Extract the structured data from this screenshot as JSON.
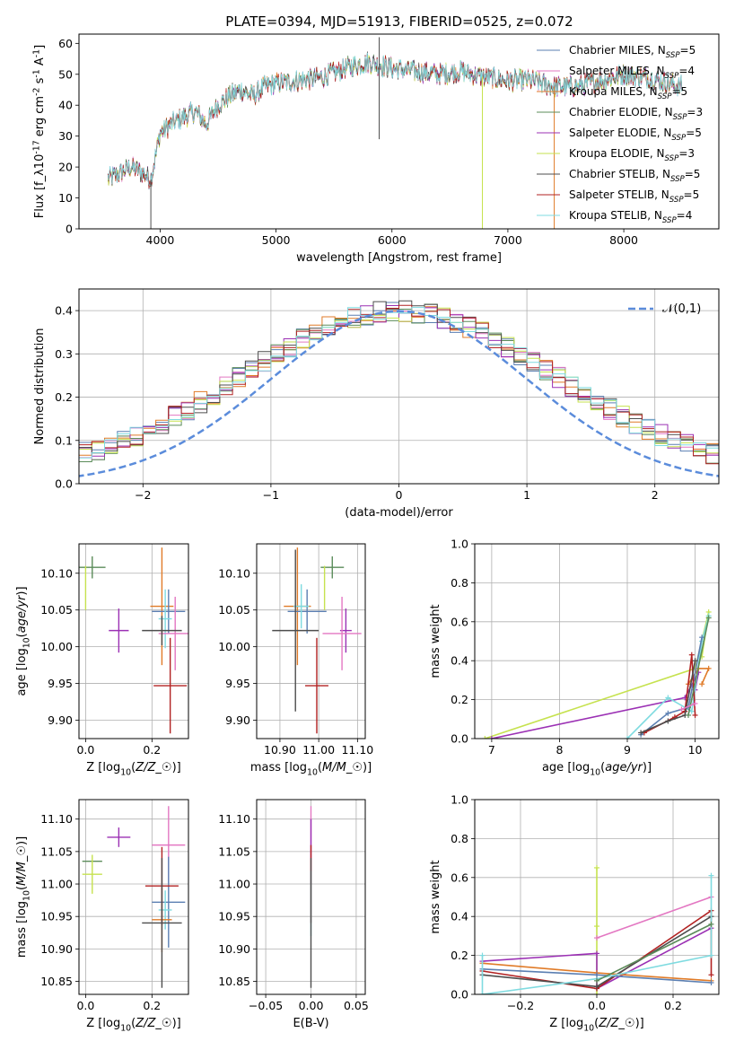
{
  "figure": {
    "title": "PLATE=0394, MJD=51913, FIBERID=0525, z=0.072"
  },
  "chart_data": [
    {
      "id": "spectrum",
      "type": "line",
      "xlabel": "wavelength [Angstrom, rest frame]",
      "ylabel": "Flux [f$_\\lambda$10$^{-17}$ erg cm$^{-2}$ s$^{-1}$ A$^{-1}$]",
      "xlim": [
        3300,
        8820
      ],
      "ylim": [
        0,
        63
      ],
      "xticks": [
        4000,
        5000,
        6000,
        7000,
        8000
      ],
      "yticks": [
        0,
        10,
        20,
        30,
        40,
        50,
        60
      ],
      "grid": false,
      "legend_position": "top-right",
      "continuum": {
        "x": [
          3550,
          3650,
          3750,
          3850,
          3920,
          4000,
          4100,
          4200,
          4300,
          4400,
          4500,
          4600,
          4700,
          4800,
          4900,
          5000,
          5200,
          5400,
          5600,
          5800,
          6000,
          6200,
          6400,
          6600,
          6800,
          7000,
          7200,
          7400,
          7600,
          7800,
          8000,
          8200,
          8400,
          8500
        ],
        "y": [
          16,
          18,
          20,
          18,
          16,
          31,
          34,
          36,
          38,
          34,
          40,
          43,
          45,
          43,
          46,
          47,
          48,
          49,
          52,
          54,
          52,
          51,
          50,
          51,
          49,
          48,
          48,
          46,
          46,
          48,
          50,
          49,
          47,
          46
        ]
      },
      "spikes": [
        {
          "x": 3920,
          "y": 0
        },
        {
          "x": 5890,
          "y": 29
        },
        {
          "x": 5890,
          "y": 62
        },
        {
          "x": 6780,
          "y": 0
        },
        {
          "x": 7400,
          "y": 0
        }
      ],
      "series": [
        {
          "name": "Chabrier MILES, N$_{SSP}$=5",
          "color": "#5b7fb2"
        },
        {
          "name": "Salpeter MILES, N$_{SSP}$=4",
          "color": "#e377c2"
        },
        {
          "name": "Kroupa MILES, N$_{SSP}$=5",
          "color": "#e07b28"
        },
        {
          "name": "Chabrier ELODIE, N$_{SSP}$=3",
          "color": "#5b8c5a"
        },
        {
          "name": "Salpeter ELODIE, N$_{SSP}$=5",
          "color": "#9b30b4"
        },
        {
          "name": "Kroupa ELODIE, N$_{SSP}$=3",
          "color": "#c6e24f"
        },
        {
          "name": "Chabrier STELIB, N$_{SSP}$=5",
          "color": "#4d4d4d"
        },
        {
          "name": "Salpeter STELIB, N$_{SSP}$=5",
          "color": "#b22222"
        },
        {
          "name": "Kroupa STELIB, N$_{SSP}$=4",
          "color": "#7fdbe0"
        }
      ]
    },
    {
      "id": "histogram",
      "type": "bar",
      "xlabel": "(data-model)/error",
      "ylabel": "Normed distribution",
      "xlim": [
        -2.5,
        2.5
      ],
      "ylim": [
        0,
        0.45
      ],
      "xticks": [
        -2,
        -1,
        0,
        1,
        2
      ],
      "yticks": [
        0.0,
        0.1,
        0.2,
        0.3,
        0.4
      ],
      "grid": true,
      "legend_position": "top-right",
      "reference_curve": {
        "name": "$\\mathcal{N}(0,1)$",
        "color": "#5b8cdb",
        "mean": 0,
        "sigma": 1
      },
      "bin_width": 0.1
    },
    {
      "id": "age_vs_Z",
      "type": "scatter",
      "xlabel": "Z [log$_{10}$($Z/Z_\\odot$)]",
      "ylabel": "age  [log$_{10}$($age/yr$)]",
      "xlim": [
        -0.02,
        0.31
      ],
      "ylim": [
        9.875,
        10.14
      ],
      "xticks": [
        0.0,
        0.2
      ],
      "yticks": [
        9.9,
        9.95,
        10.0,
        10.05,
        10.1
      ],
      "grid": true,
      "points": [
        {
          "x": 0.02,
          "y": 10.108,
          "xerr": 0.04,
          "yerr": 0.015,
          "color": "#5b8c5a"
        },
        {
          "x": 0.0,
          "y": 10.08,
          "xerr": 0.0,
          "yerr": 0.03,
          "color": "#c6e24f"
        },
        {
          "x": 0.1,
          "y": 10.022,
          "xerr": 0.03,
          "yerr": 0.03,
          "color": "#9b30b4"
        },
        {
          "x": 0.23,
          "y": 10.055,
          "xerr": 0.035,
          "yerr": 0.08,
          "color": "#e07b28"
        },
        {
          "x": 0.25,
          "y": 10.048,
          "xerr": 0.05,
          "yerr": 0.03,
          "color": "#5b7fb2"
        },
        {
          "x": 0.24,
          "y": 10.038,
          "xerr": 0.02,
          "yerr": 0.04,
          "color": "#7fdbe0"
        },
        {
          "x": 0.27,
          "y": 10.018,
          "xerr": 0.05,
          "yerr": 0.05,
          "color": "#e377c2"
        },
        {
          "x": 0.23,
          "y": 10.022,
          "xerr": 0.06,
          "yerr": 0.02,
          "color": "#4d4d4d"
        },
        {
          "x": 0.255,
          "y": 9.947,
          "xerr": 0.05,
          "yerr": 0.065,
          "color": "#b22222"
        }
      ]
    },
    {
      "id": "age_vs_mass",
      "type": "scatter",
      "xlabel": "mass [log$_{10}$($M/M_\\odot$)]",
      "ylabel": "",
      "xlim": [
        10.84,
        11.12
      ],
      "ylim": [
        9.875,
        10.14
      ],
      "xticks": [
        10.9,
        11.0,
        11.1
      ],
      "yticks": [
        9.9,
        9.95,
        10.0,
        10.05,
        10.1
      ],
      "grid": true,
      "points": [
        {
          "x": 11.035,
          "y": 10.108,
          "xerr": 0.03,
          "yerr": 0.015,
          "color": "#5b8c5a"
        },
        {
          "x": 11.015,
          "y": 10.08,
          "xerr": 0.0,
          "yerr": 0.03,
          "color": "#c6e24f"
        },
        {
          "x": 11.07,
          "y": 10.022,
          "xerr": 0.015,
          "yerr": 0.03,
          "color": "#9b30b4"
        },
        {
          "x": 10.945,
          "y": 10.055,
          "xerr": 0.035,
          "yerr": 0.08,
          "color": "#e07b28"
        },
        {
          "x": 10.97,
          "y": 10.048,
          "xerr": 0.05,
          "yerr": 0.03,
          "color": "#5b7fb2"
        },
        {
          "x": 10.955,
          "y": 10.055,
          "xerr": 0.02,
          "yerr": 0.03,
          "color": "#7fdbe0"
        },
        {
          "x": 11.06,
          "y": 10.018,
          "xerr": 0.05,
          "yerr": 0.05,
          "color": "#e377c2"
        },
        {
          "x": 10.94,
          "y": 10.022,
          "xerr": 0.06,
          "yerr": 0.11,
          "color": "#4d4d4d"
        },
        {
          "x": 10.995,
          "y": 9.947,
          "xerr": 0.03,
          "yerr": 0.065,
          "color": "#b22222"
        }
      ]
    },
    {
      "id": "weight_vs_age",
      "type": "line",
      "xlabel": "age  [log$_{10}$($age/yr$)]",
      "ylabel": "mass weight",
      "xlim": [
        6.75,
        10.35
      ],
      "ylim": [
        0,
        1.0
      ],
      "xticks": [
        7,
        8,
        9,
        10
      ],
      "yticks": [
        0.0,
        0.2,
        0.4,
        0.6,
        0.8,
        1.0
      ],
      "grid": true,
      "series": [
        {
          "color": "#c6e24f",
          "x": [
            6.9,
            10.0,
            10.2,
            10.1
          ],
          "y": [
            0.0,
            0.36,
            0.65,
            0.42
          ]
        },
        {
          "color": "#9b30b4",
          "x": [
            7.0,
            9.85,
            10.05,
            10.0
          ],
          "y": [
            0.0,
            0.21,
            0.34,
            0.25
          ]
        },
        {
          "color": "#7fdbe0",
          "x": [
            9.0,
            9.6,
            9.95,
            10.1,
            10.2
          ],
          "y": [
            0.0,
            0.21,
            0.14,
            0.5,
            0.63
          ]
        },
        {
          "color": "#e07b28",
          "x": [
            9.9,
            10.05,
            10.2,
            10.1
          ],
          "y": [
            0.28,
            0.36,
            0.36,
            0.28
          ]
        },
        {
          "color": "#5b7fb2",
          "x": [
            9.2,
            9.6,
            9.9,
            10.1
          ],
          "y": [
            0.02,
            0.13,
            0.16,
            0.52
          ]
        },
        {
          "color": "#b22222",
          "x": [
            9.25,
            9.7,
            9.85,
            9.95,
            10.0
          ],
          "y": [
            0.03,
            0.11,
            0.14,
            0.43,
            0.12
          ]
        },
        {
          "color": "#4d4d4d",
          "x": [
            9.2,
            9.6,
            9.85,
            10.0
          ],
          "y": [
            0.03,
            0.09,
            0.12,
            0.4
          ]
        },
        {
          "color": "#5b8c5a",
          "x": [
            9.9,
            10.2
          ],
          "y": [
            0.12,
            0.62
          ]
        },
        {
          "color": "#e377c2",
          "x": [
            9.8,
            10.0
          ],
          "y": [
            0.15,
            0.18
          ]
        }
      ]
    },
    {
      "id": "mass_vs_Z",
      "type": "scatter",
      "xlabel": "Z [log$_{10}$($Z/Z_\\odot$)]",
      "ylabel": "mass [log$_{10}$($M/M_\\odot$)]",
      "xlim": [
        -0.02,
        0.31
      ],
      "ylim": [
        10.83,
        11.13
      ],
      "xticks": [
        0.0,
        0.2
      ],
      "yticks": [
        10.85,
        10.9,
        10.95,
        11.0,
        11.05,
        11.1
      ],
      "grid": true,
      "points": [
        {
          "x": 0.02,
          "y": 11.035,
          "xerr": 0.03,
          "yerr": 0.0,
          "color": "#5b8c5a"
        },
        {
          "x": 0.02,
          "y": 11.015,
          "xerr": 0.03,
          "yerr": 0.03,
          "color": "#c6e24f"
        },
        {
          "x": 0.1,
          "y": 11.072,
          "xerr": 0.035,
          "yerr": 0.015,
          "color": "#9b30b4"
        },
        {
          "x": 0.25,
          "y": 11.06,
          "xerr": 0.05,
          "yerr": 0.06,
          "color": "#e377c2"
        },
        {
          "x": 0.25,
          "y": 10.972,
          "xerr": 0.05,
          "yerr": 0.07,
          "color": "#5b7fb2"
        },
        {
          "x": 0.24,
          "y": 10.96,
          "xerr": 0.02,
          "yerr": 0.03,
          "color": "#7fdbe0"
        },
        {
          "x": 0.23,
          "y": 10.945,
          "xerr": 0.03,
          "yerr": 0.05,
          "color": "#e07b28"
        },
        {
          "x": 0.23,
          "y": 10.997,
          "xerr": 0.05,
          "yerr": 0.06,
          "color": "#b22222"
        },
        {
          "x": 0.23,
          "y": 10.94,
          "xerr": 0.06,
          "yerr": 0.1,
          "color": "#4d4d4d"
        }
      ]
    },
    {
      "id": "mass_vs_ebv",
      "type": "scatter",
      "xlabel": "E(B-V)",
      "ylabel": "",
      "xlim": [
        -0.06,
        0.06
      ],
      "ylim": [
        10.83,
        11.13
      ],
      "xticks": [
        -0.05,
        0.0,
        0.05
      ],
      "yticks": [
        10.85,
        10.9,
        10.95,
        11.0,
        11.05,
        11.1
      ],
      "grid": true,
      "points": [
        {
          "x": 0.0,
          "y": 11.06,
          "xerr": 0.0,
          "yerr": 0.06,
          "color": "#e377c2"
        },
        {
          "x": 0.0,
          "y": 11.07,
          "xerr": 0.0,
          "yerr": 0.03,
          "color": "#9b30b4"
        },
        {
          "x": 0.0,
          "y": 11.0,
          "xerr": 0.0,
          "yerr": 0.06,
          "color": "#b22222"
        },
        {
          "x": 0.0,
          "y": 10.97,
          "xerr": 0.0,
          "yerr": 0.05,
          "color": "#7fdbe0"
        },
        {
          "x": 0.0,
          "y": 10.94,
          "xerr": 0.0,
          "yerr": 0.1,
          "color": "#4d4d4d"
        }
      ]
    },
    {
      "id": "weight_vs_Z",
      "type": "line",
      "xlabel": "Z [log$_{10}$($Z/Z_\\odot$)]",
      "ylabel": "mass weight",
      "xlim": [
        -0.32,
        0.32
      ],
      "ylim": [
        0,
        1.0
      ],
      "xticks": [
        -0.2,
        0.0,
        0.2
      ],
      "yticks": [
        0.0,
        0.2,
        0.4,
        0.6,
        0.8,
        1.0
      ],
      "grid": true,
      "series": [
        {
          "color": "#c6e24f",
          "x": [
            0.0,
            0.0,
            0.0
          ],
          "y": [
            0.0,
            0.65,
            0.35
          ]
        },
        {
          "color": "#e377c2",
          "x": [
            0.0,
            0.3
          ],
          "y": [
            0.29,
            0.5
          ]
        },
        {
          "color": "#9b30b4",
          "x": [
            -0.3,
            0.0,
            0.0,
            0.3
          ],
          "y": [
            0.17,
            0.21,
            0.03,
            0.34
          ]
        },
        {
          "color": "#b22222",
          "x": [
            -0.3,
            0.0,
            0.3,
            0.3
          ],
          "y": [
            0.12,
            0.03,
            0.43,
            0.1
          ]
        },
        {
          "color": "#4d4d4d",
          "x": [
            -0.3,
            0.0,
            0.3
          ],
          "y": [
            0.1,
            0.04,
            0.4
          ]
        },
        {
          "color": "#e07b28",
          "x": [
            -0.3,
            0.0,
            0.3
          ],
          "y": [
            0.16,
            0.11,
            0.07
          ]
        },
        {
          "color": "#5b7fb2",
          "x": [
            -0.3,
            0.0,
            0.3
          ],
          "y": [
            0.13,
            0.1,
            0.06
          ]
        },
        {
          "color": "#7fdbe0",
          "x": [
            -0.3,
            -0.3,
            0.0,
            0.3,
            0.3
          ],
          "y": [
            0.2,
            0.0,
            0.08,
            0.2,
            0.61
          ]
        },
        {
          "color": "#5b8c5a",
          "x": [
            0.0,
            0.3
          ],
          "y": [
            0.07,
            0.36
          ]
        }
      ]
    }
  ]
}
